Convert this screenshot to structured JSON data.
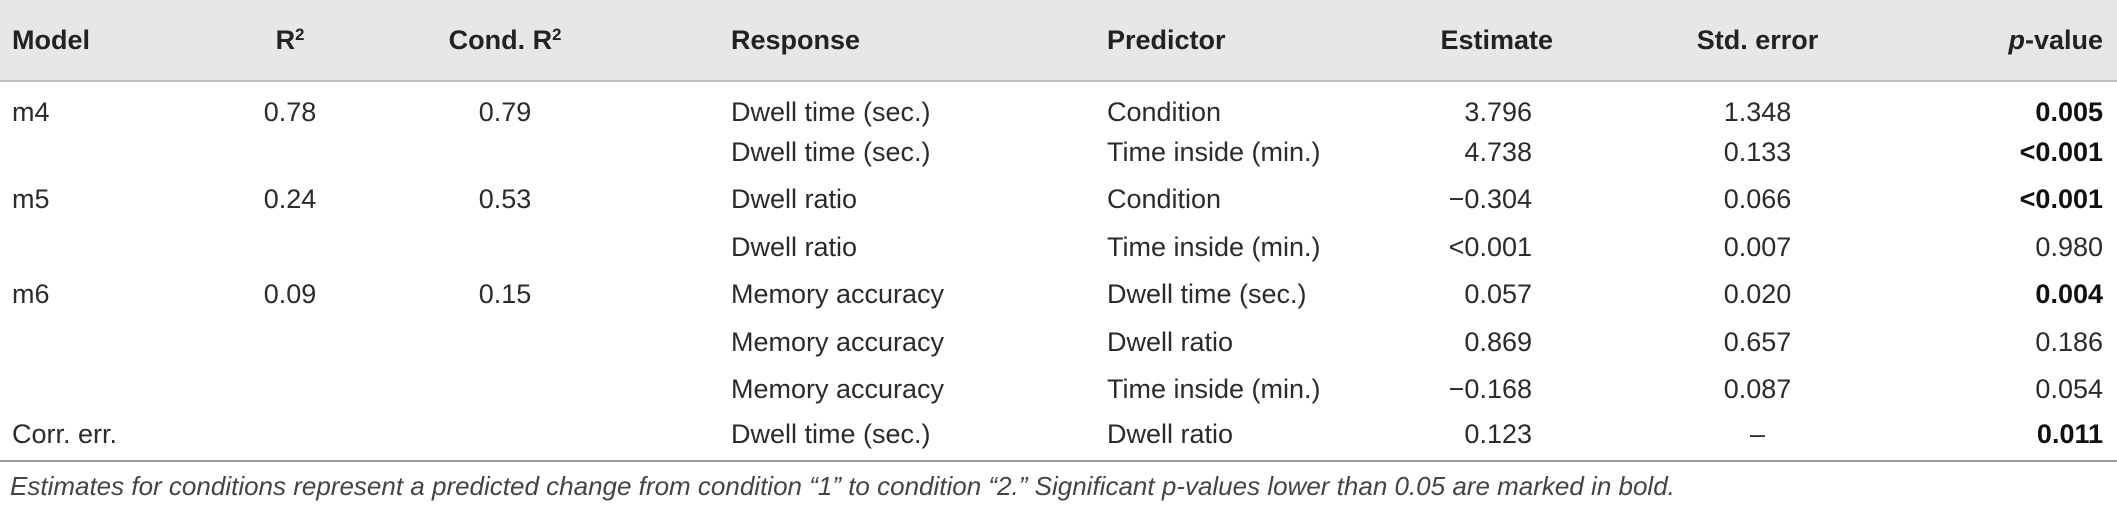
{
  "table": {
    "headers": {
      "model": "Model",
      "r2_base": "R",
      "r2_sup": "2",
      "cond_r2_base": "Cond. R",
      "cond_r2_sup": "2",
      "response": "Response",
      "predictor": "Predictor",
      "estimate": "Estimate",
      "std_error": "Std. error",
      "pvalue_p": "p",
      "pvalue_rest": "-value"
    },
    "rows": [
      {
        "model": "m4",
        "r2": "0.78",
        "cond_r2": "0.79",
        "response": "Dwell time (sec.)",
        "predictor": "Condition",
        "estimate": "3.796",
        "std_error": "1.348",
        "pvalue": "0.005",
        "significant": true
      },
      {
        "model": "",
        "r2": "",
        "cond_r2": "",
        "response": "Dwell time (sec.)",
        "predictor": "Time inside (min.)",
        "estimate": "4.738",
        "std_error": "0.133",
        "pvalue": "<0.001",
        "significant": true
      },
      {
        "model": "m5",
        "r2": "0.24",
        "cond_r2": "0.53",
        "response": "Dwell ratio",
        "predictor": "Condition",
        "estimate": "−0.304",
        "std_error": "0.066",
        "pvalue": "<0.001",
        "significant": true
      },
      {
        "model": "",
        "r2": "",
        "cond_r2": "",
        "response": "Dwell ratio",
        "predictor": "Time inside (min.)",
        "estimate": "<0.001",
        "std_error": "0.007",
        "pvalue": "0.980",
        "significant": false
      },
      {
        "model": "m6",
        "r2": "0.09",
        "cond_r2": "0.15",
        "response": "Memory accuracy",
        "predictor": "Dwell time (sec.)",
        "estimate": "0.057",
        "std_error": "0.020",
        "pvalue": "0.004",
        "significant": true
      },
      {
        "model": "",
        "r2": "",
        "cond_r2": "",
        "response": "Memory accuracy",
        "predictor": "Dwell ratio",
        "estimate": "0.869",
        "std_error": "0.657",
        "pvalue": "0.186",
        "significant": false
      },
      {
        "model": "",
        "r2": "",
        "cond_r2": "",
        "response": "Memory accuracy",
        "predictor": "Time inside (min.)",
        "estimate": "−0.168",
        "std_error": "0.087",
        "pvalue": "0.054",
        "significant": false
      },
      {
        "model": "Corr. err.",
        "r2": "",
        "cond_r2": "",
        "response": "Dwell time (sec.)",
        "predictor": "Dwell ratio",
        "estimate": "0.123",
        "std_error": "–",
        "pvalue": "0.011",
        "significant": true
      }
    ]
  },
  "footnote": "Estimates for conditions represent a predicted change from condition “1” to condition “2.” Significant p-values lower than 0.05 are marked in bold.",
  "colors": {
    "header_bg": "#e7e7e7",
    "text": "#2b2b2b",
    "rule": "#9a9a9a"
  }
}
